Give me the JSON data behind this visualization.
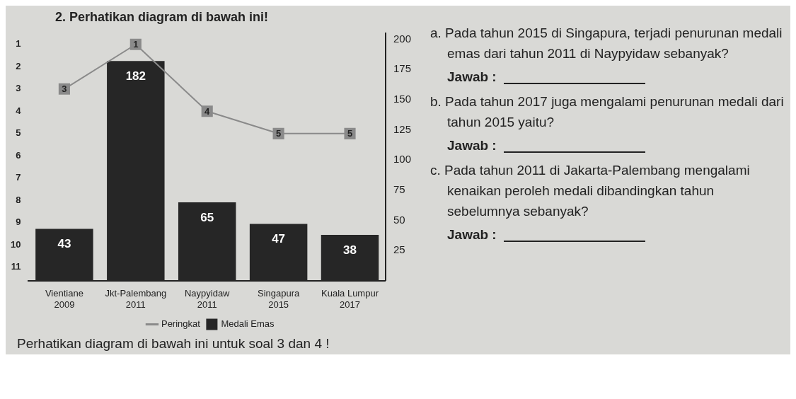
{
  "chart_data": {
    "type": "bar",
    "title": "2. Perhatikan diagram di bawah ini!",
    "categories": [
      "Vientiane\n2009",
      "Jkt-Palembang\n2011",
      "Naypyidaw\n2011",
      "Singapura\n2015",
      "Kuala Lumpur\n2017"
    ],
    "series": [
      {
        "name": "Peringkat",
        "type": "line",
        "axis": "y",
        "color": "#8a8a8a",
        "values": [
          3,
          1,
          4,
          5,
          5
        ]
      },
      {
        "name": "Medali Emas",
        "axis": "y2",
        "color": "#262626",
        "values": [
          43,
          182,
          65,
          47,
          38
        ]
      }
    ],
    "ylim": [
      11.6,
      0.5
    ],
    "yticks": [
      1,
      2,
      3,
      4,
      5,
      6,
      7,
      8,
      9,
      10,
      11
    ],
    "y2lim": [
      0,
      205
    ],
    "y2ticks": [
      25,
      50,
      75,
      100,
      125,
      150,
      175,
      200
    ],
    "data_labels": true,
    "legend": "bottom",
    "marker": "square",
    "grid": false,
    "annotations": [
      "a. Pada tahun 2015 di Singapura, terjadi penurunan medali emas dari tahun 2011 di Naypyidaw sebanyak?",
      "Jawab :",
      "b. Pada tahun 2017 juga mengalami penurunan medali dari tahun 2015 yaitu?",
      "Jawab :",
      "c. Pada tahun 2011 di Jakarta-Palembang mengalami kenaikan peroleh medali dibandingkan tahun sebelumnya sebanyak?",
      "Jawab :",
      "Perhatikan diagram di bawah ini untuk soal 3 dan 4 !"
    ]
  }
}
